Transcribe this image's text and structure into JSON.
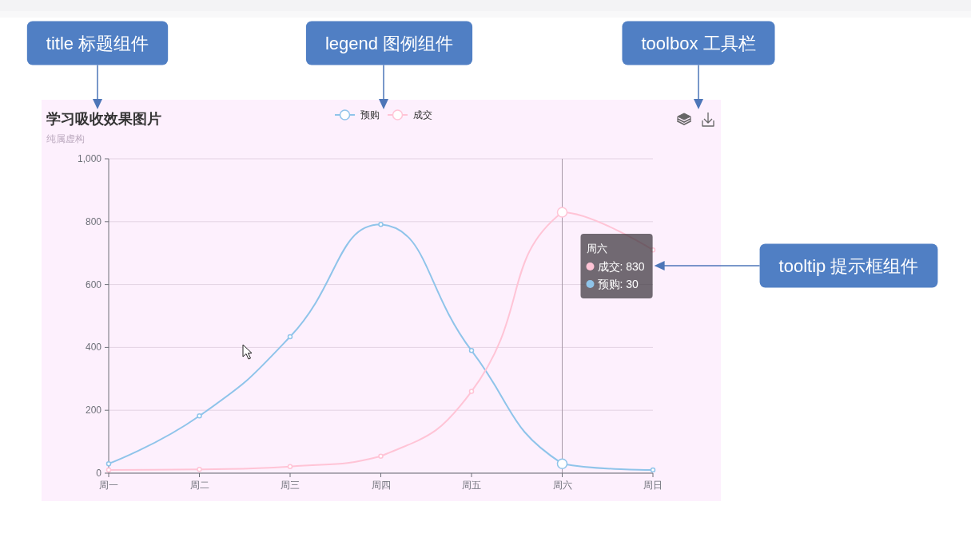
{
  "chart_data": {
    "type": "line",
    "title": "学习吸收效果图片",
    "subtitle": "纯属虚构",
    "categories": [
      "周一",
      "周二",
      "周三",
      "周四",
      "周五",
      "周六",
      "周日"
    ],
    "series": [
      {
        "name": "预购",
        "color": "#8fc4ea",
        "values": [
          30,
          182,
          434,
          791,
          390,
          30,
          10
        ]
      },
      {
        "name": "成交",
        "color": "#ffc4d6",
        "values": [
          10,
          12,
          21,
          54,
          260,
          830,
          710
        ]
      }
    ],
    "ylim": [
      0,
      1000
    ],
    "yticks": [
      0,
      200,
      400,
      600,
      800,
      {
        "value": 1000,
        "label": "1,000"
      }
    ],
    "grid": "y",
    "legend": "top",
    "marker": "circle",
    "line_style": "solid",
    "ref_lines": [
      {
        "axis": "x",
        "value": "周六",
        "color": "#a99aa9"
      }
    ],
    "annotations": [
      "title 标题组件",
      "legend 图例组件",
      "toolbox 工具栏",
      "tooltip 提示框组件",
      "周六",
      "成交: 830",
      "预购: 30"
    ]
  }
}
